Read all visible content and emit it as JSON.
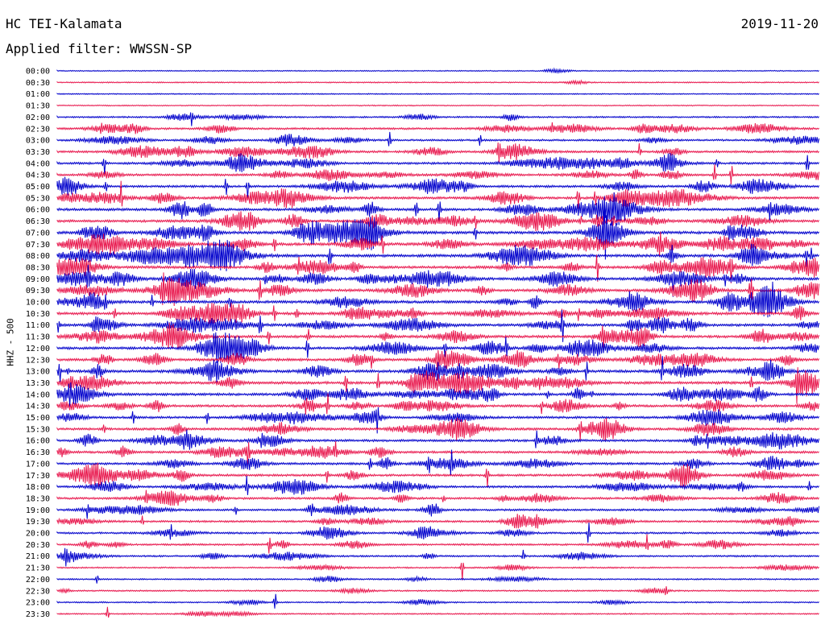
{
  "header": {
    "station": "HC TEI-Kalamata",
    "date": "2019-11-20",
    "filter": "Applied filter: WWSSN-SP"
  },
  "chart_data": {
    "type": "line",
    "title": "HC TEI-Kalamata",
    "ylabel": "HHZ - 500",
    "row_labels": [
      "00:00",
      "00:30",
      "01:00",
      "01:30",
      "02:00",
      "02:30",
      "03:00",
      "03:30",
      "04:00",
      "04:30",
      "05:00",
      "05:30",
      "06:00",
      "06:30",
      "07:00",
      "07:30",
      "08:00",
      "08:30",
      "09:00",
      "09:30",
      "10:00",
      "10:30",
      "11:00",
      "11:30",
      "12:00",
      "12:30",
      "13:00",
      "13:30",
      "14:00",
      "14:30",
      "15:00",
      "15:30",
      "16:00",
      "16:30",
      "17:00",
      "17:30",
      "18:00",
      "18:30",
      "19:00",
      "19:30",
      "20:00",
      "20:30",
      "21:00",
      "21:30",
      "22:00",
      "22:30",
      "23:00",
      "23:30"
    ],
    "series_colors": [
      "#0000cc",
      "#e8174d"
    ],
    "activity": [
      0.03,
      0.05,
      0.02,
      0.02,
      0.2,
      0.35,
      0.3,
      0.4,
      0.45,
      0.4,
      0.45,
      0.5,
      0.55,
      0.55,
      0.65,
      0.6,
      0.65,
      0.6,
      0.6,
      0.6,
      0.6,
      0.6,
      0.55,
      0.55,
      0.55,
      0.55,
      0.6,
      0.6,
      0.55,
      0.5,
      0.45,
      0.5,
      0.45,
      0.45,
      0.45,
      0.45,
      0.4,
      0.4,
      0.35,
      0.35,
      0.3,
      0.3,
      0.25,
      0.15,
      0.15,
      0.15,
      0.12,
      0.1
    ]
  }
}
